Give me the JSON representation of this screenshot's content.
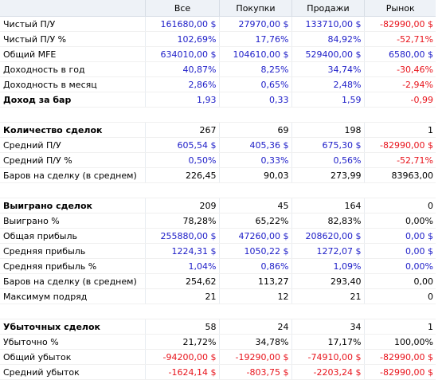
{
  "colors": {
    "blue": "#1d1dc8",
    "red": "#e8141c",
    "black": "#000000"
  },
  "columns": [
    "",
    "Все",
    "Покупки",
    "Продажи",
    "Рынок"
  ],
  "rows": [
    {
      "label": "Чистый П/У",
      "values": [
        "161680,00 $",
        "27970,00 $",
        "133710,00 $",
        "-82990,00 $"
      ],
      "colors": [
        "blue",
        "blue",
        "blue",
        "red"
      ]
    },
    {
      "label": "Чистый П/У %",
      "values": [
        "102,69%",
        "17,76%",
        "84,92%",
        "-52,71%"
      ],
      "colors": [
        "blue",
        "blue",
        "blue",
        "red"
      ]
    },
    {
      "label": "Общий MFE",
      "values": [
        "634010,00 $",
        "104610,00 $",
        "529400,00 $",
        "6580,00 $"
      ],
      "colors": [
        "blue",
        "blue",
        "blue",
        "blue"
      ]
    },
    {
      "label": "Доходность в год",
      "values": [
        "40,87%",
        "8,25%",
        "34,74%",
        "-30,46%"
      ],
      "colors": [
        "blue",
        "blue",
        "blue",
        "red"
      ]
    },
    {
      "label": "Доходность в месяц",
      "values": [
        "2,86%",
        "0,65%",
        "2,48%",
        "-2,94%"
      ],
      "colors": [
        "blue",
        "blue",
        "blue",
        "red"
      ]
    },
    {
      "label": "Доход за бар",
      "bold": true,
      "values": [
        "1,93",
        "0,33",
        "1,59",
        "-0,99"
      ],
      "colors": [
        "blue",
        "blue",
        "blue",
        "red"
      ]
    },
    {
      "spacer": true
    },
    {
      "label": "Количество сделок",
      "bold": true,
      "values": [
        "267",
        "69",
        "198",
        "1"
      ],
      "colors": [
        "black",
        "black",
        "black",
        "black"
      ]
    },
    {
      "label": "Средний П/У",
      "values": [
        "605,54 $",
        "405,36 $",
        "675,30 $",
        "-82990,00 $"
      ],
      "colors": [
        "blue",
        "blue",
        "blue",
        "red"
      ]
    },
    {
      "label": "Средний П/У %",
      "values": [
        "0,50%",
        "0,33%",
        "0,56%",
        "-52,71%"
      ],
      "colors": [
        "blue",
        "blue",
        "blue",
        "red"
      ]
    },
    {
      "label": "Баров на сделку (в среднем)",
      "values": [
        "226,45",
        "90,03",
        "273,99",
        "83963,00"
      ],
      "colors": [
        "black",
        "black",
        "black",
        "black"
      ]
    },
    {
      "spacer": true
    },
    {
      "label": "Выиграно сделок",
      "bold": true,
      "values": [
        "209",
        "45",
        "164",
        "0"
      ],
      "colors": [
        "black",
        "black",
        "black",
        "black"
      ]
    },
    {
      "label": "Выиграно %",
      "values": [
        "78,28%",
        "65,22%",
        "82,83%",
        "0,00%"
      ],
      "colors": [
        "black",
        "black",
        "black",
        "black"
      ]
    },
    {
      "label": "Общая прибыль",
      "values": [
        "255880,00 $",
        "47260,00 $",
        "208620,00 $",
        "0,00 $"
      ],
      "colors": [
        "blue",
        "blue",
        "blue",
        "blue"
      ]
    },
    {
      "label": "Средняя прибыль",
      "values": [
        "1224,31 $",
        "1050,22 $",
        "1272,07 $",
        "0,00 $"
      ],
      "colors": [
        "blue",
        "blue",
        "blue",
        "blue"
      ]
    },
    {
      "label": "Средняя прибыль %",
      "values": [
        "1,04%",
        "0,86%",
        "1,09%",
        "0,00%"
      ],
      "colors": [
        "blue",
        "blue",
        "blue",
        "blue"
      ]
    },
    {
      "label": "Баров на сделку (в среднем)",
      "values": [
        "254,62",
        "113,27",
        "293,40",
        "0,00"
      ],
      "colors": [
        "black",
        "black",
        "black",
        "black"
      ]
    },
    {
      "label": "Максимум подряд",
      "values": [
        "21",
        "12",
        "21",
        "0"
      ],
      "colors": [
        "black",
        "black",
        "black",
        "black"
      ]
    },
    {
      "spacer": true
    },
    {
      "label": "Убыточных сделок",
      "bold": true,
      "values": [
        "58",
        "24",
        "34",
        "1"
      ],
      "colors": [
        "black",
        "black",
        "black",
        "black"
      ]
    },
    {
      "label": "Убыточно %",
      "values": [
        "21,72%",
        "34,78%",
        "17,17%",
        "100,00%"
      ],
      "colors": [
        "black",
        "black",
        "black",
        "black"
      ]
    },
    {
      "label": "Общий убыток",
      "values": [
        "-94200,00 $",
        "-19290,00 $",
        "-74910,00 $",
        "-82990,00 $"
      ],
      "colors": [
        "red",
        "red",
        "red",
        "red"
      ]
    },
    {
      "label": "Средний убыток",
      "values": [
        "-1624,14 $",
        "-803,75 $",
        "-2203,24 $",
        "-82990,00 $"
      ],
      "colors": [
        "red",
        "red",
        "red",
        "red"
      ]
    }
  ]
}
